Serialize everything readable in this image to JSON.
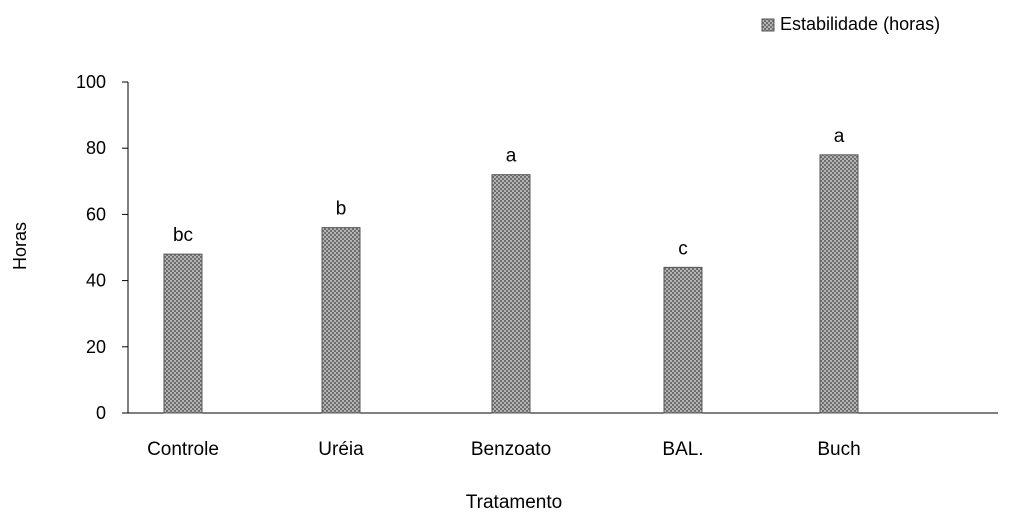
{
  "chart_data": {
    "type": "bar",
    "title": "",
    "xlabel": "Tratamento",
    "ylabel": "Horas",
    "categories": [
      "Controle",
      "Uréia",
      "Benzoato",
      "BAL.",
      "Buch"
    ],
    "series": [
      {
        "name": "Estabilidade (horas)",
        "values": [
          48,
          56,
          72,
          44,
          78
        ],
        "letters": [
          "bc",
          "b",
          "a",
          "c",
          "a"
        ]
      }
    ],
    "ylim": [
      0,
      100
    ],
    "yticks": [
      0,
      20,
      40,
      60,
      80,
      100
    ],
    "grid": false,
    "legend_position": "top-right"
  }
}
